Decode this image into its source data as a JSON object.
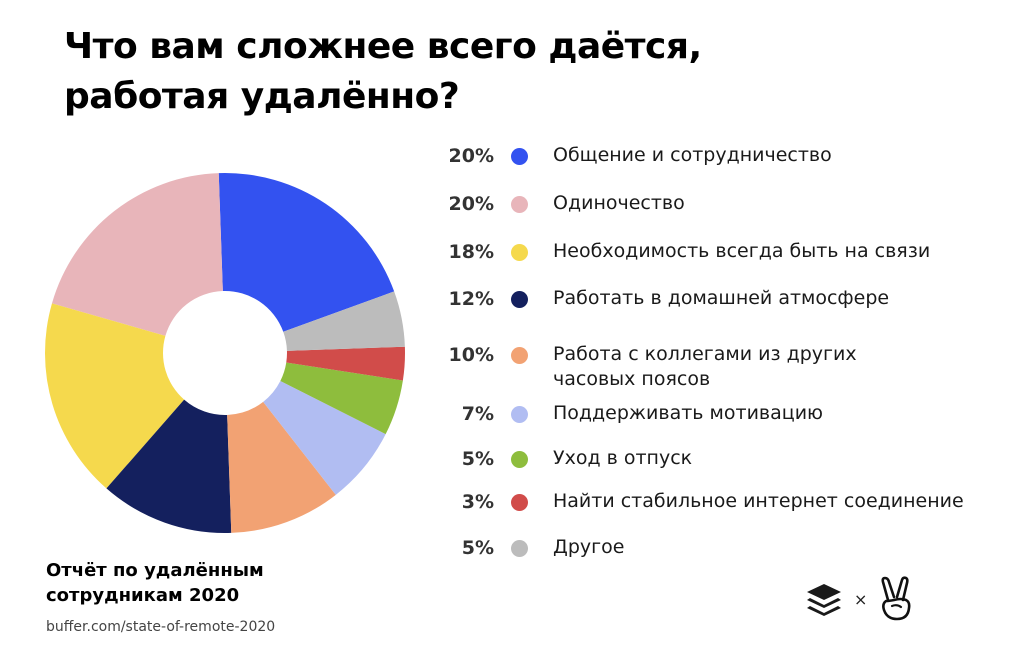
{
  "title": {
    "line1": "Что вам сложнее всего даётся,",
    "line2": "работая удалённо?"
  },
  "chart_data": {
    "type": "pie",
    "donut": true,
    "categories": [
      "Общение и сотрудничество",
      "Одиночество",
      "Необходимость всегда быть на связи",
      "Работать в домашней атмосфере",
      "Работа с коллегами из других часовых поясов",
      "Поддерживать мотивацию",
      "Уход в отпуск",
      "Найти стабильное интернет соединение",
      "Другое"
    ],
    "values": [
      20,
      20,
      18,
      12,
      10,
      7,
      5,
      3,
      5
    ],
    "value_labels": [
      "20%",
      "20%",
      "18%",
      "12%",
      "10%",
      "7%",
      "5%",
      "3%",
      "5%"
    ],
    "colors": [
      "#3352f0",
      "#e8b5ba",
      "#f5d94d",
      "#14205e",
      "#f2a273",
      "#b1bdf2",
      "#8ebd3d",
      "#d14c4a",
      "#bcbcbc"
    ],
    "legend_position": "right"
  },
  "legend": {
    "items": [
      {
        "pct": "20%",
        "label_lines": [
          "Общение и сотрудничество"
        ]
      },
      {
        "pct": "20%",
        "label_lines": [
          "Одиночество"
        ]
      },
      {
        "pct": "18%",
        "label_lines": [
          "Необходимость всегда быть на связи"
        ]
      },
      {
        "pct": "12%",
        "label_lines": [
          "Работать в домашней атмосфере"
        ]
      },
      {
        "pct": "10%",
        "label_lines": [
          "Работа с коллегами из других",
          "часовых поясов"
        ]
      },
      {
        "pct": "7%",
        "label_lines": [
          "Поддерживать мотивацию"
        ]
      },
      {
        "pct": "5%",
        "label_lines": [
          "Уход в отпуск"
        ]
      },
      {
        "pct": "3%",
        "label_lines": [
          "Найти стабильное интернет соединение"
        ]
      },
      {
        "pct": "5%",
        "label_lines": [
          "Другое"
        ]
      }
    ]
  },
  "footer": {
    "report_line1": "Отчёт по удалённым",
    "report_line2": "сотрудникам 2020",
    "source_url": "buffer.com/state-of-remote-2020",
    "times_sign": "×"
  },
  "icons": {
    "buffer_logo": "buffer-logo-icon",
    "angellist_logo": "victory-hand-icon"
  }
}
